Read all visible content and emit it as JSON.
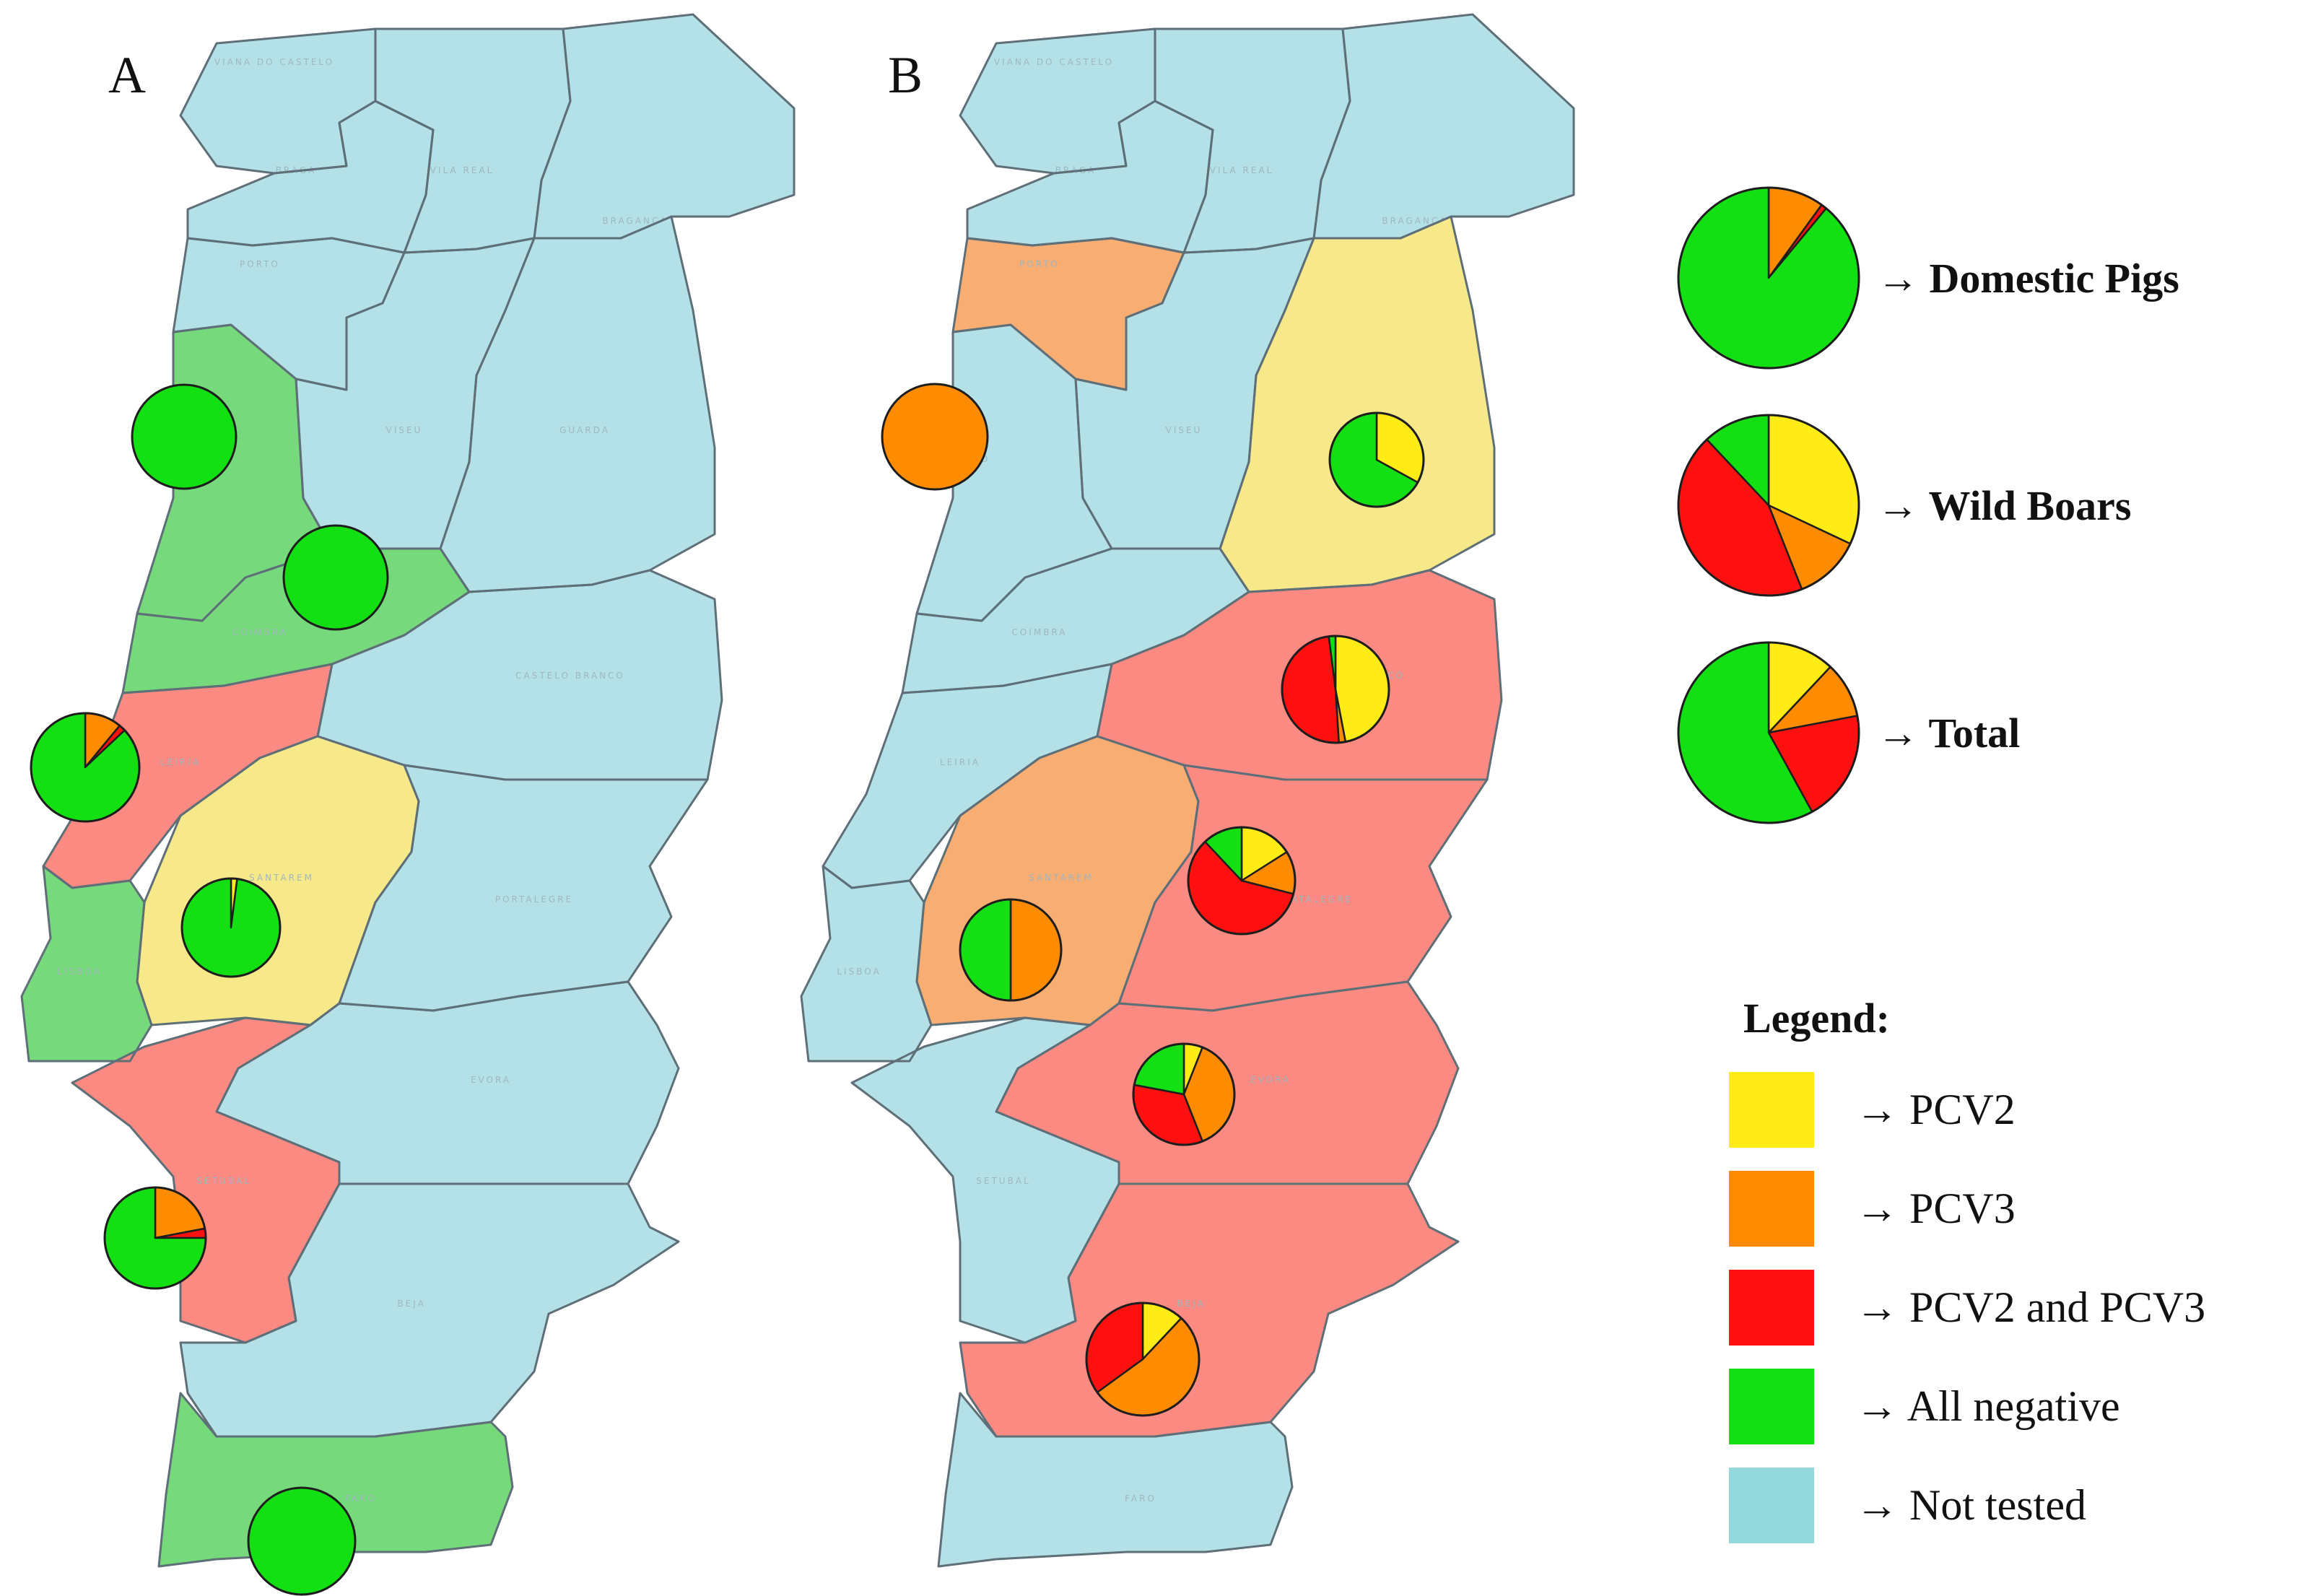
{
  "panels": [
    {
      "letter": "A",
      "districts": [
        {
          "name": "VIANA DO CASTELO",
          "status": "not_tested"
        },
        {
          "name": "BRAGA",
          "status": "not_tested"
        },
        {
          "name": "VILA REAL",
          "status": "not_tested"
        },
        {
          "name": "BRAGANCA",
          "status": "not_tested"
        },
        {
          "name": "PORTO",
          "status": "not_tested"
        },
        {
          "name": "AVEIRO",
          "status": "all_negative"
        },
        {
          "name": "VISEU",
          "status": "not_tested"
        },
        {
          "name": "GUARDA",
          "status": "not_tested"
        },
        {
          "name": "COIMBRA",
          "status": "all_negative"
        },
        {
          "name": "CASTELO BRANCO",
          "status": "not_tested"
        },
        {
          "name": "LEIRIA",
          "status": "pcv2_and_pcv3"
        },
        {
          "name": "SANTAREM",
          "status": "pcv2"
        },
        {
          "name": "PORTALEGRE",
          "status": "not_tested"
        },
        {
          "name": "LISBOA",
          "status": "all_negative"
        },
        {
          "name": "SETUBAL",
          "status": "pcv2_and_pcv3"
        },
        {
          "name": "EVORA",
          "status": "not_tested"
        },
        {
          "name": "BEJA",
          "status": "not_tested"
        },
        {
          "name": "FARO",
          "status": "all_negative"
        }
      ],
      "pies": [
        {
          "district": "AVEIRO",
          "slices": {
            "pcv2": 0,
            "pcv3": 0,
            "pcv2_and_pcv3": 0,
            "all_negative": 100
          }
        },
        {
          "district": "COIMBRA",
          "slices": {
            "pcv2": 0,
            "pcv3": 0,
            "pcv2_and_pcv3": 0,
            "all_negative": 100
          }
        },
        {
          "district": "LEIRIA",
          "slices": {
            "pcv2": 0,
            "pcv3": 11,
            "pcv2_and_pcv3": 2,
            "all_negative": 87
          }
        },
        {
          "district": "SANTAREM",
          "slices": {
            "pcv2": 2,
            "pcv3": 0,
            "pcv2_and_pcv3": 0,
            "all_negative": 98
          }
        },
        {
          "district": "SETUBAL",
          "slices": {
            "pcv2": 0,
            "pcv3": 22,
            "pcv2_and_pcv3": 3,
            "all_negative": 75
          }
        },
        {
          "district": "FARO",
          "slices": {
            "pcv2": 0,
            "pcv3": 0,
            "pcv2_and_pcv3": 0,
            "all_negative": 100
          }
        }
      ]
    },
    {
      "letter": "B",
      "districts": [
        {
          "name": "VIANA DO CASTELO",
          "status": "not_tested"
        },
        {
          "name": "BRAGA",
          "status": "not_tested"
        },
        {
          "name": "VILA REAL",
          "status": "not_tested"
        },
        {
          "name": "BRAGANCA",
          "status": "not_tested"
        },
        {
          "name": "PORTO",
          "status": "pcv3"
        },
        {
          "name": "VISEU",
          "status": "not_tested"
        },
        {
          "name": "GUARDA",
          "status": "pcv2"
        },
        {
          "name": "AVEIRO",
          "status": "not_tested"
        },
        {
          "name": "COIMBRA",
          "status": "not_tested"
        },
        {
          "name": "CASTELO BRANCO",
          "status": "pcv2_and_pcv3"
        },
        {
          "name": "LEIRIA",
          "status": "not_tested"
        },
        {
          "name": "SANTAREM",
          "status": "pcv3"
        },
        {
          "name": "PORTALEGRE",
          "status": "pcv2_and_pcv3"
        },
        {
          "name": "LISBOA",
          "status": "not_tested"
        },
        {
          "name": "SETUBAL",
          "status": "not_tested"
        },
        {
          "name": "EVORA",
          "status": "pcv2_and_pcv3"
        },
        {
          "name": "BEJA",
          "status": "pcv2_and_pcv3"
        },
        {
          "name": "FARO",
          "status": "not_tested"
        }
      ],
      "pies": [
        {
          "district": "PORTO",
          "slices": {
            "pcv2": 0,
            "pcv3": 100,
            "pcv2_and_pcv3": 0,
            "all_negative": 0
          }
        },
        {
          "district": "GUARDA",
          "slices": {
            "pcv2": 33,
            "pcv3": 0,
            "pcv2_and_pcv3": 0,
            "all_negative": 67
          }
        },
        {
          "district": "CASTELO BRANCO",
          "slices": {
            "pcv2": 47,
            "pcv3": 2,
            "pcv2_and_pcv3": 49,
            "all_negative": 2
          }
        },
        {
          "district": "SANTAREM",
          "slices": {
            "pcv2": 0,
            "pcv3": 50,
            "pcv2_and_pcv3": 0,
            "all_negative": 50
          }
        },
        {
          "district": "PORTALEGRE",
          "slices": {
            "pcv2": 16,
            "pcv3": 13,
            "pcv2_and_pcv3": 59,
            "all_negative": 12
          }
        },
        {
          "district": "EVORA",
          "slices": {
            "pcv2": 6,
            "pcv3": 38,
            "pcv2_and_pcv3": 34,
            "all_negative": 22
          }
        },
        {
          "district": "BEJA",
          "slices": {
            "pcv2": 12,
            "pcv3": 53,
            "pcv2_and_pcv3": 35,
            "all_negative": 0
          }
        }
      ]
    }
  ],
  "summary_pies": [
    {
      "label": "→ Domestic Pigs",
      "slices": {
        "pcv2": 0,
        "pcv3": 10,
        "pcv2_and_pcv3": 1,
        "all_negative": 89
      }
    },
    {
      "label": "→ Wild Boars",
      "slices": {
        "pcv2": 32,
        "pcv3": 12,
        "pcv2_and_pcv3": 44,
        "all_negative": 12
      }
    },
    {
      "label": "→ Total",
      "slices": {
        "pcv2": 12,
        "pcv3": 10,
        "pcv2_and_pcv3": 20,
        "all_negative": 58
      }
    }
  ],
  "legend": {
    "title": "Legend:",
    "items": [
      {
        "key": "pcv2",
        "label": "→ PCV2",
        "color": "#ffeb16"
      },
      {
        "key": "pcv3",
        "label": "→ PCV3",
        "color": "#ff8c00"
      },
      {
        "key": "pcv2_and_pcv3",
        "label": "→ PCV2 and PCV3",
        "color": "#ff1010"
      },
      {
        "key": "all_negative",
        "label": "→ All negative",
        "color": "#12e012"
      },
      {
        "key": "not_tested",
        "label": "→ Not tested",
        "color": "#93d8dc"
      }
    ]
  },
  "colors": {
    "pcv2": "#ffeb16",
    "pcv3": "#ff8c00",
    "pcv2_and_pcv3": "#ff1010",
    "all_negative": "#12e012",
    "not_tested": "#93d8dc",
    "region_fill": {
      "pcv2": "#f7e98a",
      "pcv3": "#f8ad72",
      "pcv2_and_pcv3": "#fb8a82",
      "all_negative": "#76d97b",
      "not_tested": "#b4e1e8"
    }
  }
}
